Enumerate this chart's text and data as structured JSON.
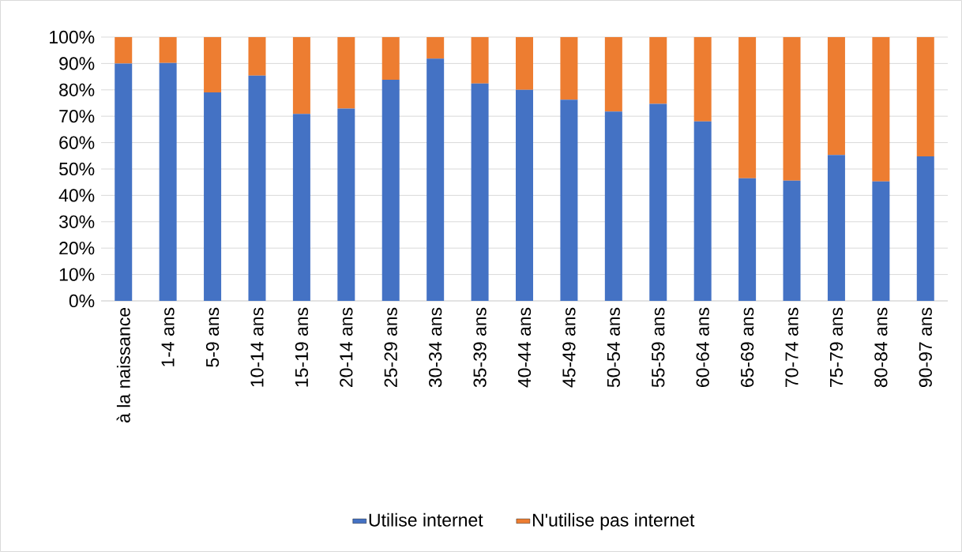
{
  "chart_data": {
    "type": "bar",
    "stacked": true,
    "categories": [
      "à la naissance",
      "1-4 ans",
      "5-9 ans",
      "10-14 ans",
      "15-19 ans",
      "20-14 ans",
      "25-29 ans",
      "30-34 ans",
      "35-39 ans",
      "40-44 ans",
      "45-49 ans",
      "50-54 ans",
      "55-59 ans",
      "60-64 ans",
      "65-69 ans",
      "70-74 ans",
      "75-79 ans",
      "80-84 ans",
      "90-97 ans"
    ],
    "series": [
      {
        "name": "Utilise internet",
        "color": "#4472c4",
        "values": [
          90,
          90.2,
          79,
          85.4,
          70.9,
          72.9,
          83.8,
          91.8,
          82.4,
          80,
          76.3,
          71.8,
          74.7,
          68,
          46.5,
          45.6,
          55.3,
          45.3,
          54.8
        ]
      },
      {
        "name": "N'utilise pas internet",
        "color": "#ed7d31",
        "values": [
          10,
          9.8,
          21,
          14.6,
          29.1,
          27.1,
          16.2,
          8.2,
          17.6,
          20,
          23.7,
          28.2,
          25.3,
          32,
          53.5,
          54.4,
          44.7,
          54.7,
          45.2
        ]
      }
    ],
    "ylim": [
      0,
      100
    ],
    "yticks": [
      {
        "value": 0,
        "label": "0%"
      },
      {
        "value": 10,
        "label": "10%"
      },
      {
        "value": 20,
        "label": "20%"
      },
      {
        "value": 30,
        "label": "30%"
      },
      {
        "value": 40,
        "label": "40%"
      },
      {
        "value": 50,
        "label": "50%"
      },
      {
        "value": 60,
        "label": "60%"
      },
      {
        "value": 70,
        "label": "70%"
      },
      {
        "value": 80,
        "label": "80%"
      },
      {
        "value": 90,
        "label": "90%"
      },
      {
        "value": 100,
        "label": "100%"
      }
    ],
    "grid": "y",
    "legend": "bottom"
  }
}
